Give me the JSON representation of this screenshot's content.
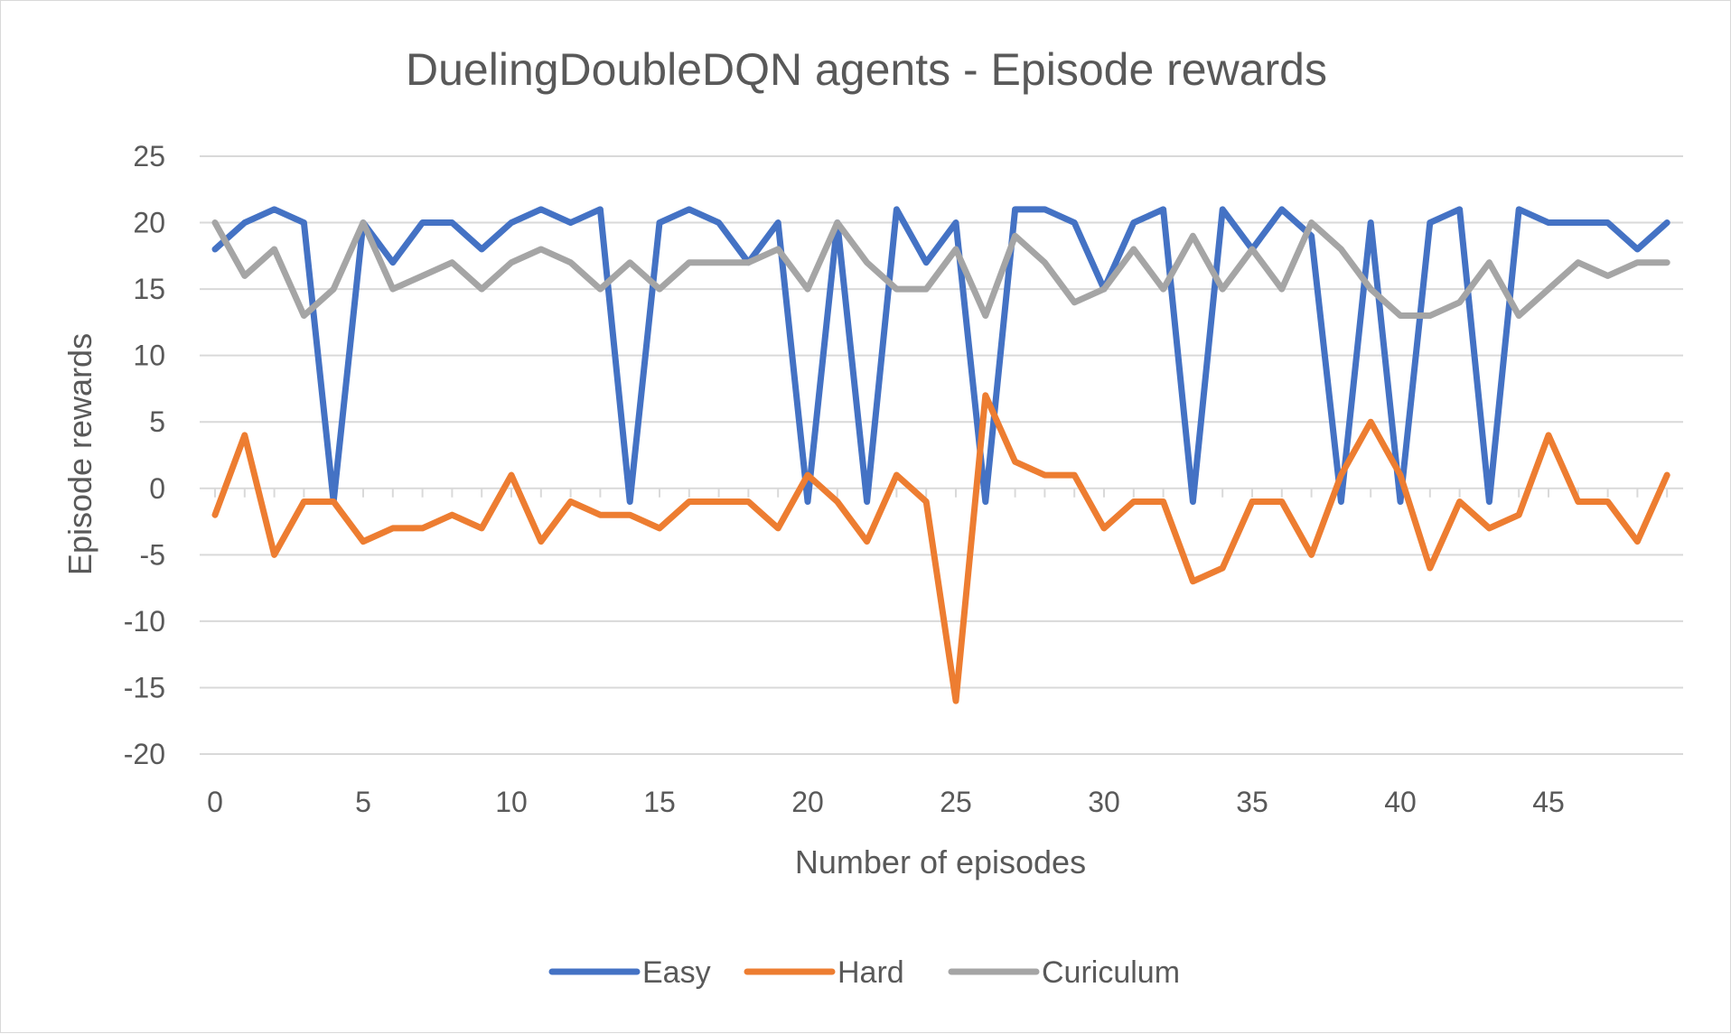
{
  "chart_data": {
    "type": "line",
    "title": "DuelingDoubleDQN agents - Episode rewards",
    "xlabel": "Number of episodes",
    "ylabel": "Episode rewards",
    "ylim": [
      -20,
      25
    ],
    "yticks": [
      -20,
      -15,
      -10,
      -5,
      0,
      5,
      10,
      15,
      20,
      25
    ],
    "xlim": [
      0,
      49
    ],
    "xticks": [
      0,
      5,
      10,
      15,
      20,
      25,
      30,
      35,
      40,
      45
    ],
    "x": [
      0,
      1,
      2,
      3,
      4,
      5,
      6,
      7,
      8,
      9,
      10,
      11,
      12,
      13,
      14,
      15,
      16,
      17,
      18,
      19,
      20,
      21,
      22,
      23,
      24,
      25,
      26,
      27,
      28,
      29,
      30,
      31,
      32,
      33,
      34,
      35,
      36,
      37,
      38,
      39,
      40,
      41,
      42,
      43,
      44,
      45,
      46,
      47,
      48,
      49
    ],
    "grid": "horizontal",
    "legend_position": "bottom",
    "series": [
      {
        "name": "Easy",
        "color": "#4472C4",
        "values": [
          18,
          20,
          21,
          20,
          -1,
          20,
          17,
          20,
          20,
          18,
          20,
          21,
          20,
          21,
          -1,
          20,
          21,
          20,
          17,
          20,
          -1,
          20,
          -1,
          21,
          17,
          20,
          -1,
          21,
          21,
          20,
          15,
          20,
          21,
          -1,
          21,
          18,
          21,
          19,
          -1,
          20,
          -1,
          20,
          21,
          -1,
          21,
          20,
          20,
          20,
          18,
          20
        ]
      },
      {
        "name": "Hard",
        "color": "#ED7D31",
        "values": [
          -2,
          4,
          -5,
          -1,
          -1,
          -4,
          -3,
          -3,
          -2,
          -3,
          1,
          -4,
          -1,
          -2,
          -2,
          -3,
          -1,
          -1,
          -1,
          -3,
          1,
          -1,
          -4,
          1,
          -1,
          -16,
          7,
          2,
          1,
          1,
          -3,
          -1,
          -1,
          -7,
          -6,
          -1,
          -1,
          -5,
          1,
          5,
          1,
          -6,
          -1,
          -3,
          -2,
          4,
          -1,
          -1,
          -4,
          1
        ]
      },
      {
        "name": "Curiculum",
        "color": "#A5A5A5",
        "values": [
          20,
          16,
          18,
          13,
          15,
          20,
          15,
          16,
          17,
          15,
          17,
          18,
          17,
          15,
          17,
          15,
          17,
          17,
          17,
          18,
          15,
          20,
          17,
          15,
          15,
          18,
          13,
          19,
          17,
          14,
          15,
          18,
          15,
          19,
          15,
          18,
          15,
          20,
          18,
          15,
          13,
          13,
          14,
          17,
          13,
          15,
          17,
          16,
          17,
          17
        ]
      }
    ]
  }
}
